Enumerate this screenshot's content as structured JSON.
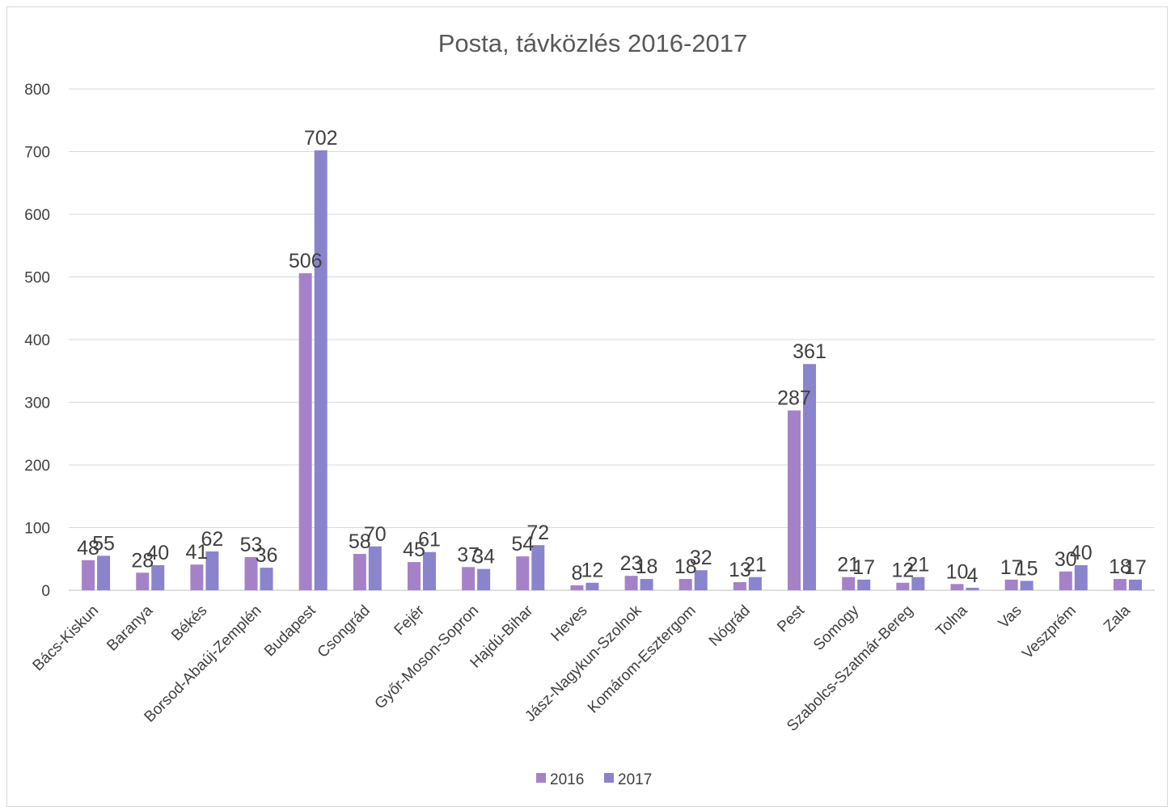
{
  "chart_data": {
    "type": "bar",
    "title": "Posta, távközlés 2016-2017",
    "xlabel": "",
    "ylabel": "",
    "ylim": [
      0,
      800
    ],
    "yticks": [
      0,
      100,
      200,
      300,
      400,
      500,
      600,
      700,
      800
    ],
    "grid": true,
    "legend_position": "bottom",
    "categories": [
      "Bács-Kiskun",
      "Baranya",
      "Békés",
      "Borsod-Abaúj-Zemplén",
      "Budapest",
      "Csongrád",
      "Fejér",
      "Győr-Moson-Sopron",
      "Hajdú-Bihar",
      "Heves",
      "Jász-Nagykun-Szolnok",
      "Komárom-Esztergom",
      "Nógrád",
      "Pest",
      "Somogy",
      "Szabolcs-Szatmár-Bereg",
      "Tolna",
      "Vas",
      "Veszprém",
      "Zala"
    ],
    "series": [
      {
        "name": "2016",
        "color": "#a582c8",
        "values": [
          48,
          28,
          41,
          53,
          506,
          58,
          45,
          37,
          54,
          8,
          23,
          18,
          13,
          287,
          21,
          12,
          10,
          17,
          30,
          18
        ]
      },
      {
        "name": "2017",
        "color": "#8a84cc",
        "values": [
          55,
          40,
          62,
          36,
          702,
          70,
          61,
          34,
          72,
          12,
          18,
          32,
          21,
          361,
          17,
          21,
          4,
          15,
          40,
          17
        ]
      }
    ]
  }
}
